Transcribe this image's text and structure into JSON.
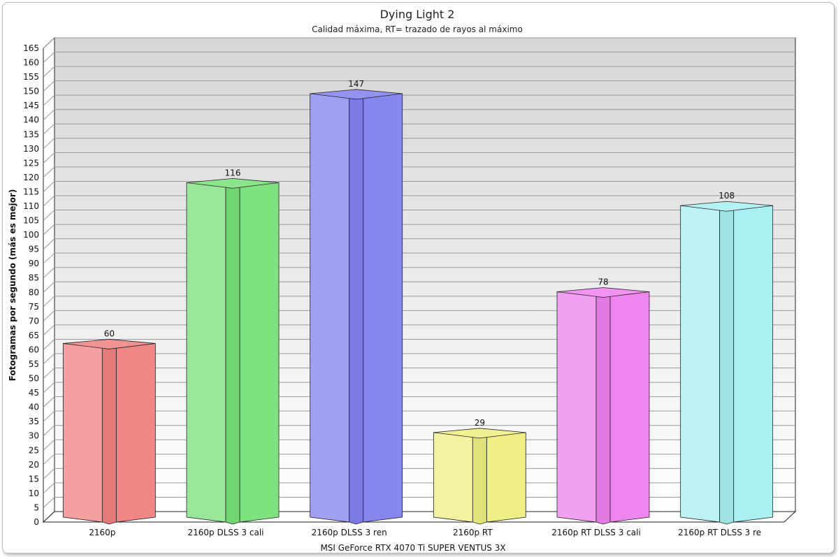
{
  "chart_data": {
    "type": "bar",
    "title": "Dying Light 2",
    "subtitle": "Calidad máxima, RT= trazado de rayos al máximo",
    "xlabel": "MSI GeForce RTX 4070 Ti SUPER VENTUS 3X",
    "ylabel": "Fotogramas por segundo (más es mejor)",
    "ylim": [
      0,
      165
    ],
    "ytick_step": 5,
    "grid": true,
    "categories": [
      "2160p",
      "2160p DLSS 3 cali",
      "2160p DLSS 3 ren",
      "2160p RT",
      "2160p RT DLSS 3 cali",
      "2160p RT DLSS 3 re"
    ],
    "values": [
      60,
      116,
      147,
      29,
      78,
      108
    ],
    "data_labels": [
      "60",
      "116",
      "147",
      "29",
      "78",
      "108"
    ],
    "colors": [
      "#f08080",
      "#77e077",
      "#8080ee",
      "#eeee80",
      "#ee80ee",
      "#a6eef0"
    ]
  }
}
